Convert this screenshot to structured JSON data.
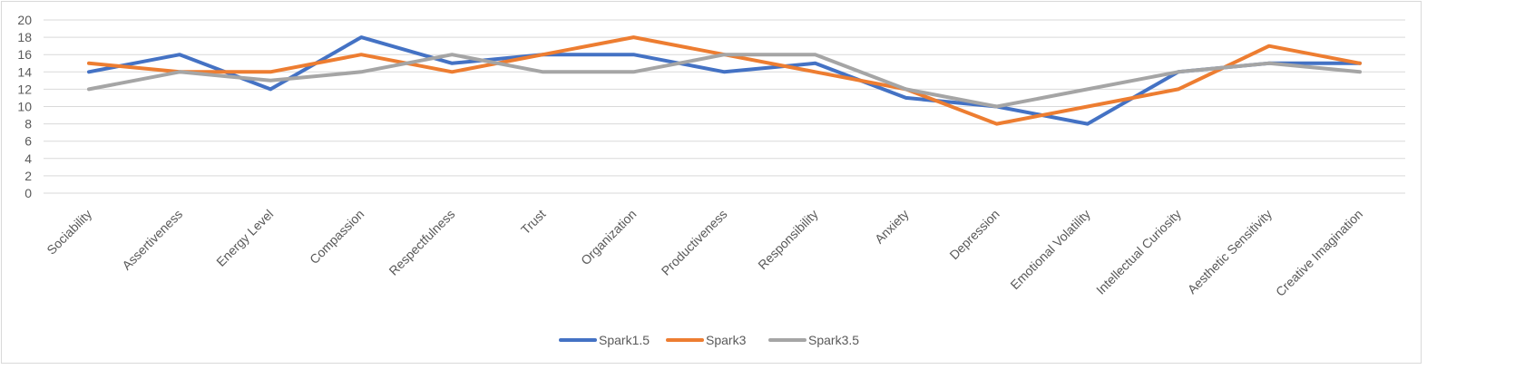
{
  "chart_data": {
    "type": "line",
    "categories": [
      "Sociability",
      "Assertiveness",
      "Energy Level",
      "Compassion",
      "Respectfulness",
      "Trust",
      "Organization",
      "Productiveness",
      "Responsibility",
      "Anxiety",
      "Depression",
      "Emotional Volatility",
      "Intellectual Curiosity",
      "Aesthetic Sensitivity",
      "Creative Imagination"
    ],
    "series": [
      {
        "name": "Spark1.5",
        "color": "#4472c4",
        "values": [
          14,
          16,
          12,
          18,
          15,
          16,
          16,
          14,
          15,
          11,
          10,
          8,
          14,
          15,
          15
        ]
      },
      {
        "name": "Spark3",
        "color": "#ed7d31",
        "values": [
          15,
          14,
          14,
          16,
          14,
          16,
          18,
          16,
          14,
          12,
          8,
          10,
          12,
          17,
          15
        ]
      },
      {
        "name": "Spark3.5",
        "color": "#a5a5a5",
        "values": [
          12,
          14,
          13,
          14,
          16,
          14,
          14,
          16,
          16,
          12,
          10,
          12,
          14,
          15,
          14
        ]
      }
    ],
    "y_ticks": [
      "0",
      "2",
      "4",
      "6",
      "8",
      "10",
      "12",
      "14",
      "16",
      "18",
      "20"
    ],
    "ylim": [
      0,
      20
    ],
    "grid": true,
    "legend_position": "bottom"
  }
}
